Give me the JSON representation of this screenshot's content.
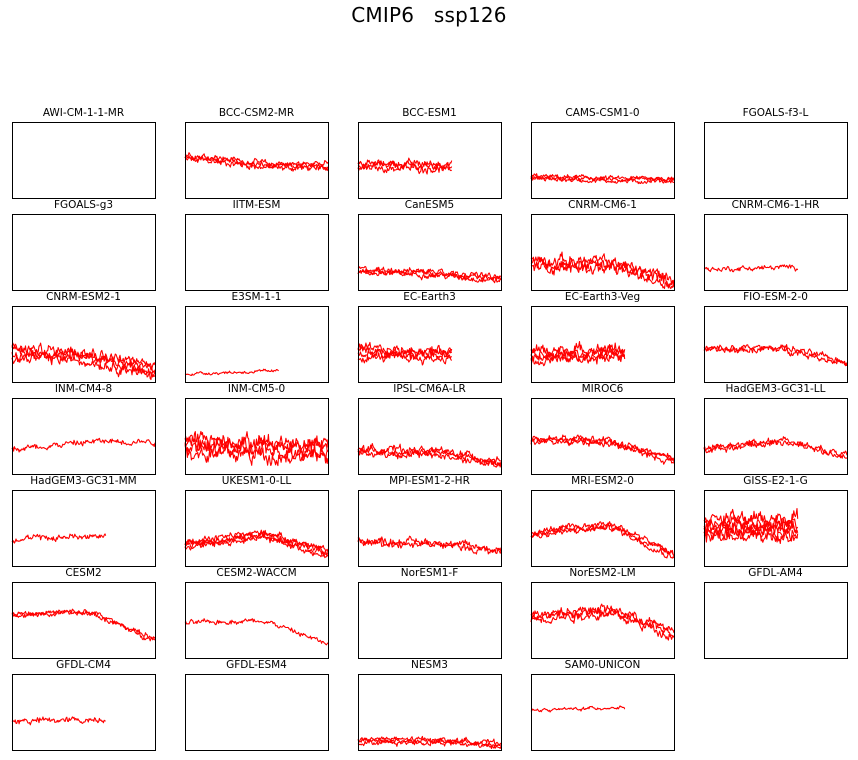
{
  "figure": {
    "title": "CMIP6   ssp126",
    "line_color": "#ff0000"
  },
  "chart_data": [
    {
      "type": "line",
      "title": "AWI-CM-1-1-MR",
      "trace": "none"
    },
    {
      "type": "line",
      "title": "BCC-CSM2-MR",
      "trace": "full",
      "start": 0.55,
      "end": 0.42,
      "drop": 0.0,
      "noise": 0.05,
      "runs": 3,
      "extent": 1.0
    },
    {
      "type": "line",
      "title": "BCC-ESM1",
      "trace": "partial",
      "start": 0.42,
      "end": 0.42,
      "drop": 0.0,
      "noise": 0.06,
      "runs": 3,
      "extent": 0.66
    },
    {
      "type": "line",
      "title": "CAMS-CSM1-0",
      "trace": "full",
      "start": 0.27,
      "end": 0.24,
      "drop": 0.0,
      "noise": 0.035,
      "runs": 3,
      "extent": 1.0
    },
    {
      "type": "line",
      "title": "FGOALS-f3-L",
      "trace": "none"
    },
    {
      "type": "line",
      "title": "FGOALS-g3",
      "trace": "none"
    },
    {
      "type": "line",
      "title": "IITM-ESM",
      "trace": "none"
    },
    {
      "type": "line",
      "title": "CanESM5",
      "trace": "full",
      "start": 0.25,
      "end": 0.22,
      "drop": 0.08,
      "noise": 0.045,
      "runs": 3,
      "extent": 1.0
    },
    {
      "type": "line",
      "title": "CNRM-CM6-1",
      "trace": "full",
      "start": 0.35,
      "end": 0.33,
      "drop": 0.22,
      "noise": 0.09,
      "runs": 3,
      "extent": 1.0
    },
    {
      "type": "line",
      "title": "CNRM-CM6-1-HR",
      "trace": "partial",
      "start": 0.27,
      "end": 0.3,
      "drop": 0.0,
      "noise": 0.04,
      "runs": 1,
      "extent": 0.66
    },
    {
      "type": "line",
      "title": "CNRM-ESM2-1",
      "trace": "full",
      "start": 0.38,
      "end": 0.33,
      "drop": 0.18,
      "noise": 0.08,
      "runs": 4,
      "extent": 1.0
    },
    {
      "type": "line",
      "title": "E3SM-1-1",
      "trace": "partial",
      "start": 0.11,
      "end": 0.14,
      "drop": 0.0,
      "noise": 0.025,
      "runs": 1,
      "extent": 0.66
    },
    {
      "type": "line",
      "title": "EC-Earth3",
      "trace": "partial",
      "start": 0.38,
      "end": 0.36,
      "drop": 0.0,
      "noise": 0.07,
      "runs": 4,
      "extent": 0.66
    },
    {
      "type": "line",
      "title": "EC-Earth3-Veg",
      "trace": "partial",
      "start": 0.35,
      "end": 0.38,
      "drop": 0.0,
      "noise": 0.08,
      "runs": 4,
      "extent": 0.66
    },
    {
      "type": "line",
      "title": "FIO-ESM-2-0",
      "trace": "full",
      "start": 0.42,
      "end": 0.45,
      "drop": 0.2,
      "noise": 0.05,
      "runs": 2,
      "extent": 1.0
    },
    {
      "type": "line",
      "title": "INM-CM4-8",
      "trace": "full",
      "start": 0.33,
      "end": 0.43,
      "drop": 0.0,
      "noise": 0.05,
      "runs": 1,
      "extent": 1.0
    },
    {
      "type": "line",
      "title": "INM-CM5-0",
      "trace": "full",
      "start": 0.38,
      "end": 0.33,
      "drop": 0.0,
      "noise": 0.12,
      "runs": 4,
      "extent": 1.0
    },
    {
      "type": "line",
      "title": "IPSL-CM6A-LR",
      "trace": "full",
      "start": 0.3,
      "end": 0.28,
      "drop": 0.14,
      "noise": 0.06,
      "runs": 3,
      "extent": 1.0
    },
    {
      "type": "line",
      "title": "MIROC6",
      "trace": "full",
      "start": 0.45,
      "end": 0.42,
      "drop": 0.24,
      "noise": 0.05,
      "runs": 3,
      "extent": 1.0
    },
    {
      "type": "line",
      "title": "HadGEM3-GC31-LL",
      "trace": "full",
      "start": 0.33,
      "end": 0.45,
      "drop": 0.22,
      "noise": 0.05,
      "runs": 2,
      "extent": 1.0
    },
    {
      "type": "line",
      "title": "HadGEM3-GC31-MM",
      "trace": "partial",
      "start": 0.35,
      "end": 0.4,
      "drop": 0.0,
      "noise": 0.05,
      "runs": 1,
      "extent": 0.66
    },
    {
      "type": "line",
      "title": "UKESM1-0-LL",
      "trace": "full",
      "start": 0.28,
      "end": 0.42,
      "drop": 0.26,
      "noise": 0.05,
      "runs": 4,
      "extent": 1.0
    },
    {
      "type": "line",
      "title": "MPI-ESM1-2-HR",
      "trace": "full",
      "start": 0.32,
      "end": 0.3,
      "drop": 0.1,
      "noise": 0.06,
      "runs": 2,
      "extent": 1.0
    },
    {
      "type": "line",
      "title": "MRI-ESM2-0",
      "trace": "full",
      "start": 0.42,
      "end": 0.55,
      "drop": 0.42,
      "noise": 0.05,
      "runs": 3,
      "extent": 1.0
    },
    {
      "type": "line",
      "title": "GISS-E2-1-G",
      "trace": "partial",
      "start": 0.5,
      "end": 0.5,
      "drop": 0.0,
      "noise": 0.1,
      "runs": 6,
      "extent": 0.66
    },
    {
      "type": "line",
      "title": "CESM2",
      "trace": "full",
      "start": 0.58,
      "end": 0.6,
      "drop": 0.36,
      "noise": 0.04,
      "runs": 2,
      "extent": 1.0
    },
    {
      "type": "line",
      "title": "CESM2-WACCM",
      "trace": "full",
      "start": 0.46,
      "end": 0.5,
      "drop": 0.32,
      "noise": 0.04,
      "runs": 1,
      "extent": 1.0
    },
    {
      "type": "line",
      "title": "NorESM1-F",
      "trace": "none"
    },
    {
      "type": "line",
      "title": "NorESM2-LM",
      "trace": "full",
      "start": 0.55,
      "end": 0.62,
      "drop": 0.3,
      "noise": 0.07,
      "runs": 3,
      "extent": 1.0
    },
    {
      "type": "line",
      "title": "GFDL-AM4",
      "trace": "none"
    },
    {
      "type": "line",
      "title": "GFDL-CM4",
      "trace": "partial",
      "start": 0.38,
      "end": 0.4,
      "drop": 0.0,
      "noise": 0.05,
      "runs": 1,
      "extent": 0.66
    },
    {
      "type": "line",
      "title": "GFDL-ESM4",
      "trace": "none"
    },
    {
      "type": "line",
      "title": "NESM3",
      "trace": "full",
      "start": 0.12,
      "end": 0.12,
      "drop": 0.05,
      "noise": 0.04,
      "runs": 3,
      "extent": 1.0
    },
    {
      "type": "line",
      "title": "SAM0-UNICON",
      "trace": "partial",
      "start": 0.52,
      "end": 0.56,
      "drop": 0.0,
      "noise": 0.025,
      "runs": 1,
      "extent": 0.66
    }
  ]
}
